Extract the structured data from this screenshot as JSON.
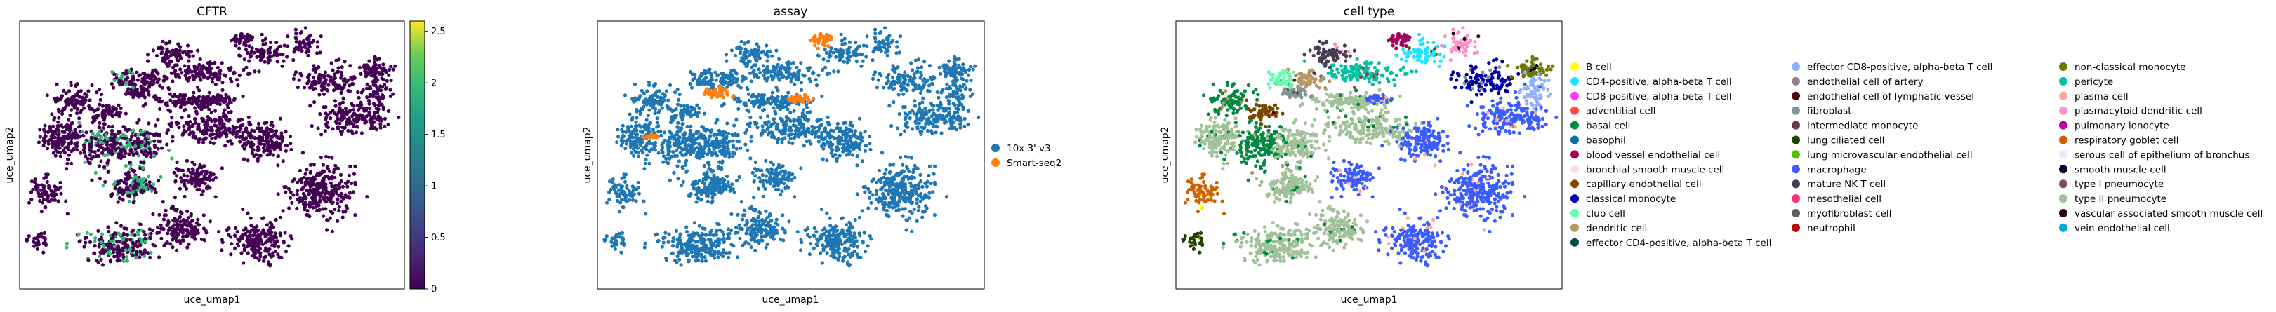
{
  "chart_data": [
    {
      "type": "scatter",
      "title": "CFTR",
      "xlabel": "uce_umap1",
      "ylabel": "uce_umap2",
      "colorbar": {
        "colormap": "viridis",
        "range": [
          0,
          2.6
        ],
        "ticks": [
          "0",
          "0.5",
          "1",
          "1.5",
          "2",
          "2.5"
        ],
        "tick_values": [
          0,
          0.5,
          1,
          1.5,
          2,
          2.5
        ]
      },
      "point_color_low": "#440154",
      "point_color_high": "#35b779"
    },
    {
      "type": "scatter",
      "title": "assay",
      "xlabel": "uce_umap1",
      "ylabel": "uce_umap2",
      "legend_position": "right",
      "legend": [
        {
          "label": "10x 3' v3",
          "color": "#1f77b4"
        },
        {
          "label": "Smart-seq2",
          "color": "#ff7f0e"
        }
      ]
    },
    {
      "type": "scatter",
      "title": "cell type",
      "xlabel": "uce_umap1",
      "ylabel": "uce_umap2",
      "legend_position": "right",
      "legend": [
        {
          "label": "B cell",
          "color": "#ffff00"
        },
        {
          "label": "CD4-positive, alpha-beta T cell",
          "color": "#1ce6ff"
        },
        {
          "label": "CD8-positive, alpha-beta T cell",
          "color": "#ff34ff"
        },
        {
          "label": "adventitial cell",
          "color": "#ff4a46"
        },
        {
          "label": "basal cell",
          "color": "#008941"
        },
        {
          "label": "basophil",
          "color": "#006fa6"
        },
        {
          "label": "blood vessel endothelial cell",
          "color": "#a30059"
        },
        {
          "label": "bronchial smooth muscle cell",
          "color": "#ffdbe5"
        },
        {
          "label": "capillary endothelial cell",
          "color": "#7a4900"
        },
        {
          "label": "classical monocyte",
          "color": "#0000a6"
        },
        {
          "label": "club cell",
          "color": "#63ffac"
        },
        {
          "label": "dendritic cell",
          "color": "#b79762"
        },
        {
          "label": "effector CD4-positive, alpha-beta T cell",
          "color": "#004d43"
        },
        {
          "label": "effector CD8-positive, alpha-beta T cell",
          "color": "#8fb0ff"
        },
        {
          "label": "endothelial cell of artery",
          "color": "#997d87"
        },
        {
          "label": "endothelial cell of lymphatic vessel",
          "color": "#5a0007"
        },
        {
          "label": "fibroblast",
          "color": "#809693"
        },
        {
          "label": "intermediate monocyte",
          "color": "#6a3a4c"
        },
        {
          "label": "lung ciliated cell",
          "color": "#1b4400"
        },
        {
          "label": "lung microvascular endothelial cell",
          "color": "#4fc601"
        },
        {
          "label": "macrophage",
          "color": "#3b5dff"
        },
        {
          "label": "mature NK T cell",
          "color": "#4a3b53"
        },
        {
          "label": "mesothelial cell",
          "color": "#ff2f80"
        },
        {
          "label": "myofibroblast cell",
          "color": "#61615a"
        },
        {
          "label": "neutrophil",
          "color": "#ba0900"
        },
        {
          "label": "non-classical monocyte",
          "color": "#6b7900"
        },
        {
          "label": "pericyte",
          "color": "#00c2a0"
        },
        {
          "label": "plasma cell",
          "color": "#ffaa92"
        },
        {
          "label": "plasmacytoid dendritic cell",
          "color": "#ff90c9"
        },
        {
          "label": "pulmonary ionocyte",
          "color": "#b903aa"
        },
        {
          "label": "respiratory goblet cell",
          "color": "#d16100"
        },
        {
          "label": "serous cell of epithelium of bronchus",
          "color": "#ddefff"
        },
        {
          "label": "smooth muscle cell",
          "color": "#000035"
        },
        {
          "label": "type I pneumocyte",
          "color": "#7b4f4b"
        },
        {
          "label": "type II pneumocyte",
          "color": "#a1c299"
        },
        {
          "label": "vascular associated smooth muscle cell",
          "color": "#300018"
        },
        {
          "label": "vein endothelial cell",
          "color": "#0aa6d8"
        }
      ]
    }
  ]
}
